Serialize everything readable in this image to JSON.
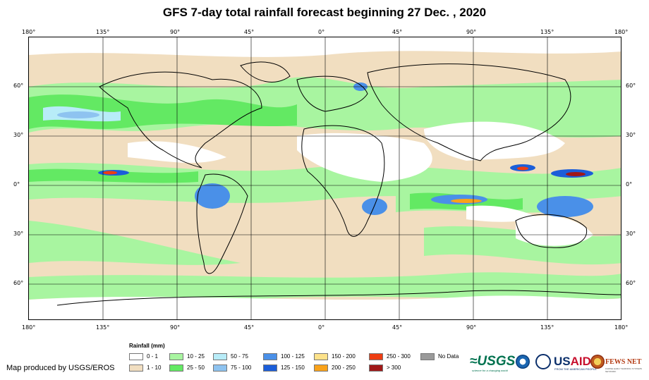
{
  "title": "GFS 7-day total rainfall forecast beginning 27 Dec. , 2020",
  "map": {
    "longitude_labels": [
      "180°",
      "135°",
      "90°",
      "45°",
      "0°",
      "45°",
      "90°",
      "135°",
      "180°"
    ],
    "latitude_labels": [
      "60°",
      "30°",
      "0°",
      "30°",
      "60°"
    ]
  },
  "legend": {
    "title": "Rainfall (mm)",
    "items": [
      {
        "label": "0 - 1",
        "color": "#ffffff"
      },
      {
        "label": "1 - 10",
        "color": "#f1dec0"
      },
      {
        "label": "10 - 25",
        "color": "#a8f5a0"
      },
      {
        "label": "25 - 50",
        "color": "#63e963"
      },
      {
        "label": "50 - 75",
        "color": "#b8ecf8"
      },
      {
        "label": "75 - 100",
        "color": "#8ec3f0"
      },
      {
        "label": "100 - 125",
        "color": "#4a90e8"
      },
      {
        "label": "125 - 150",
        "color": "#1c5ed9"
      },
      {
        "label": "150 - 200",
        "color": "#fde28a"
      },
      {
        "label": "200 - 250",
        "color": "#f9a21a"
      },
      {
        "label": "250 - 300",
        "color": "#ee3d12"
      },
      {
        "label": "> 300",
        "color": "#a01818"
      },
      {
        "label": "No Data",
        "color": "#9a9a9a"
      }
    ]
  },
  "credit": "Map produced by USGS/EROS",
  "logos": {
    "usgs": "≈USGS",
    "usgs_tagline": "science for a changing world",
    "usaid_a": "US",
    "usaid_b": "AID",
    "usaid_tagline": "FROM THE AMERICAN PEOPLE",
    "fews": "FEWS NET",
    "fews_tagline": "FAMINE EARLY WARNING SYSTEMS NETWORK"
  }
}
